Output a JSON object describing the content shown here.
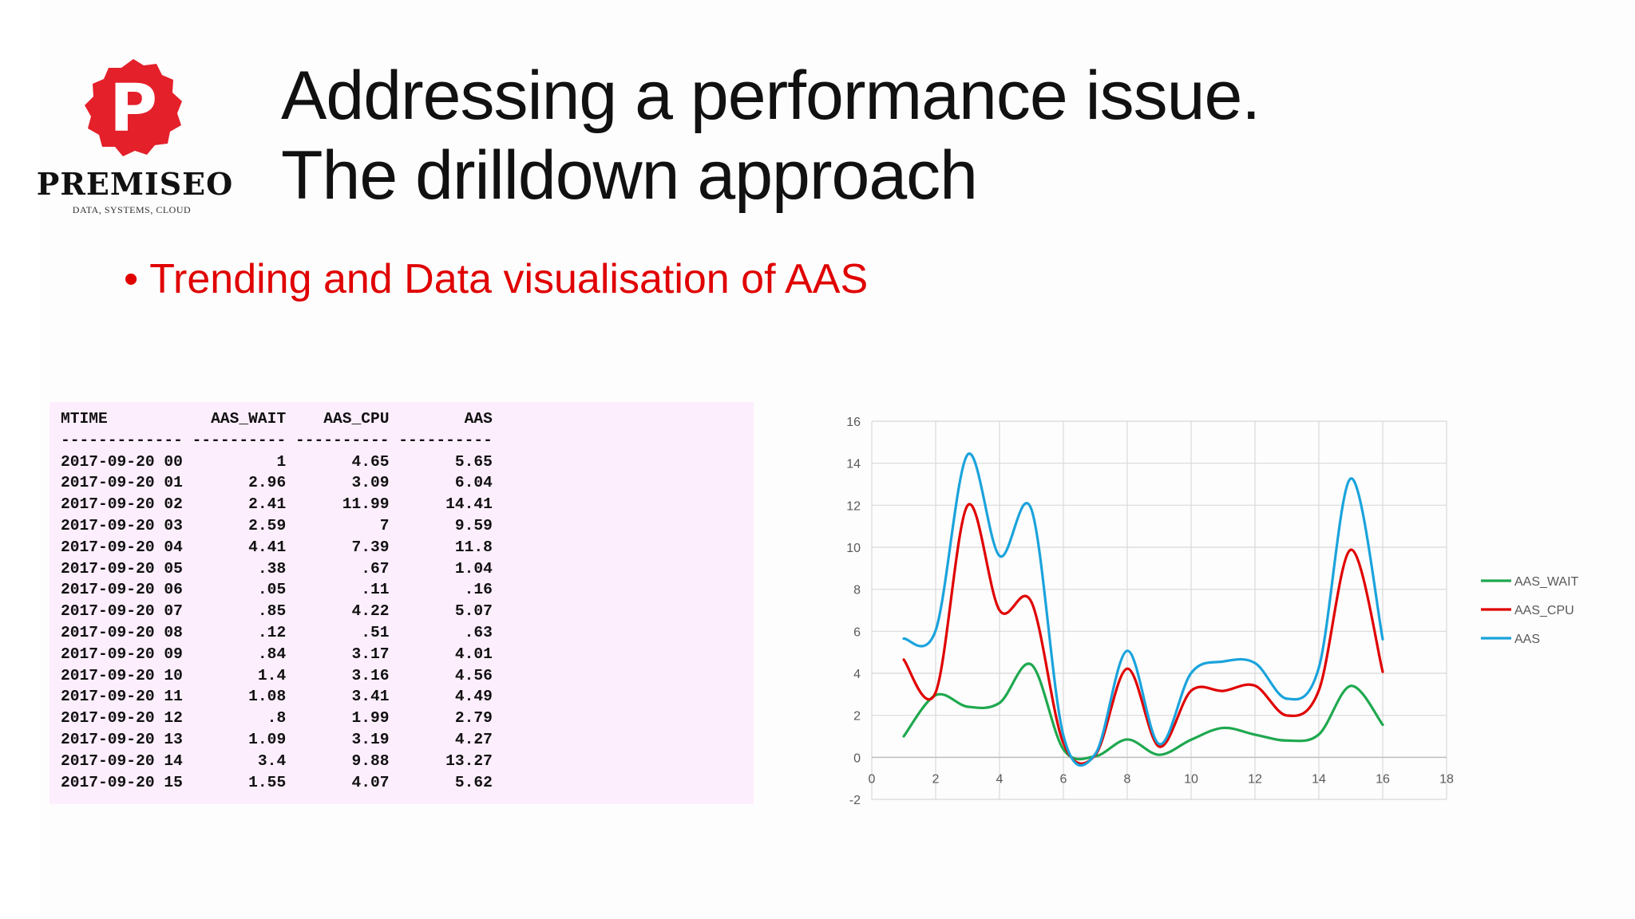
{
  "logo": {
    "letter": "P",
    "name": "PREMISEO",
    "tagline": "DATA, SYSTEMS, CLOUD",
    "color": "#e4202a"
  },
  "title": {
    "line1": "Addressing a performance issue.",
    "line2": "The drilldown approach"
  },
  "bullet": {
    "text": "Trending and Data visualisation of AAS",
    "color": "#e00000"
  },
  "table": {
    "columns": [
      "MTIME",
      "AAS_WAIT",
      "AAS_CPU",
      "AAS"
    ],
    "rows": [
      [
        "2017-09-20 00",
        "1",
        "4.65",
        "5.65"
      ],
      [
        "2017-09-20 01",
        "2.96",
        "3.09",
        "6.04"
      ],
      [
        "2017-09-20 02",
        "2.41",
        "11.99",
        "14.41"
      ],
      [
        "2017-09-20 03",
        "2.59",
        "7",
        "9.59"
      ],
      [
        "2017-09-20 04",
        "4.41",
        "7.39",
        "11.8"
      ],
      [
        "2017-09-20 05",
        ".38",
        ".67",
        "1.04"
      ],
      [
        "2017-09-20 06",
        ".05",
        ".11",
        ".16"
      ],
      [
        "2017-09-20 07",
        ".85",
        "4.22",
        "5.07"
      ],
      [
        "2017-09-20 08",
        ".12",
        ".51",
        ".63"
      ],
      [
        "2017-09-20 09",
        ".84",
        "3.17",
        "4.01"
      ],
      [
        "2017-09-20 10",
        "1.4",
        "3.16",
        "4.56"
      ],
      [
        "2017-09-20 11",
        "1.08",
        "3.41",
        "4.49"
      ],
      [
        "2017-09-20 12",
        ".8",
        "1.99",
        "2.79"
      ],
      [
        "2017-09-20 13",
        "1.09",
        "3.19",
        "4.27"
      ],
      [
        "2017-09-20 14",
        "3.4",
        "9.88",
        "13.27"
      ],
      [
        "2017-09-20 15",
        "1.55",
        "4.07",
        "5.62"
      ]
    ]
  },
  "chart_data": {
    "type": "line",
    "smooth": true,
    "xlim": [
      0,
      18
    ],
    "ylim": [
      -2,
      16
    ],
    "xticks": [
      0,
      2,
      4,
      6,
      8,
      10,
      12,
      14,
      16,
      18
    ],
    "yticks": [
      -2,
      0,
      2,
      4,
      6,
      8,
      10,
      12,
      14,
      16
    ],
    "grid": true,
    "legend_position": "right",
    "x": [
      1,
      2,
      3,
      4,
      5,
      6,
      7,
      8,
      9,
      10,
      11,
      12,
      13,
      14,
      15,
      16
    ],
    "series": [
      {
        "name": "AAS_WAIT",
        "color": "#1fa84f",
        "values": [
          1,
          2.96,
          2.41,
          2.59,
          4.41,
          0.38,
          0.05,
          0.85,
          0.12,
          0.84,
          1.4,
          1.08,
          0.8,
          1.09,
          3.4,
          1.55
        ]
      },
      {
        "name": "AAS_CPU",
        "color": "#e00000",
        "values": [
          4.65,
          3.09,
          11.99,
          7,
          7.39,
          0.67,
          0.11,
          4.22,
          0.51,
          3.17,
          3.16,
          3.41,
          1.99,
          3.19,
          9.88,
          4.07
        ]
      },
      {
        "name": "AAS",
        "color": "#1aa3dc",
        "values": [
          5.65,
          6.04,
          14.41,
          9.59,
          11.8,
          1.04,
          0.16,
          5.07,
          0.63,
          4.01,
          4.56,
          4.49,
          2.79,
          4.27,
          13.27,
          5.62
        ]
      }
    ]
  }
}
